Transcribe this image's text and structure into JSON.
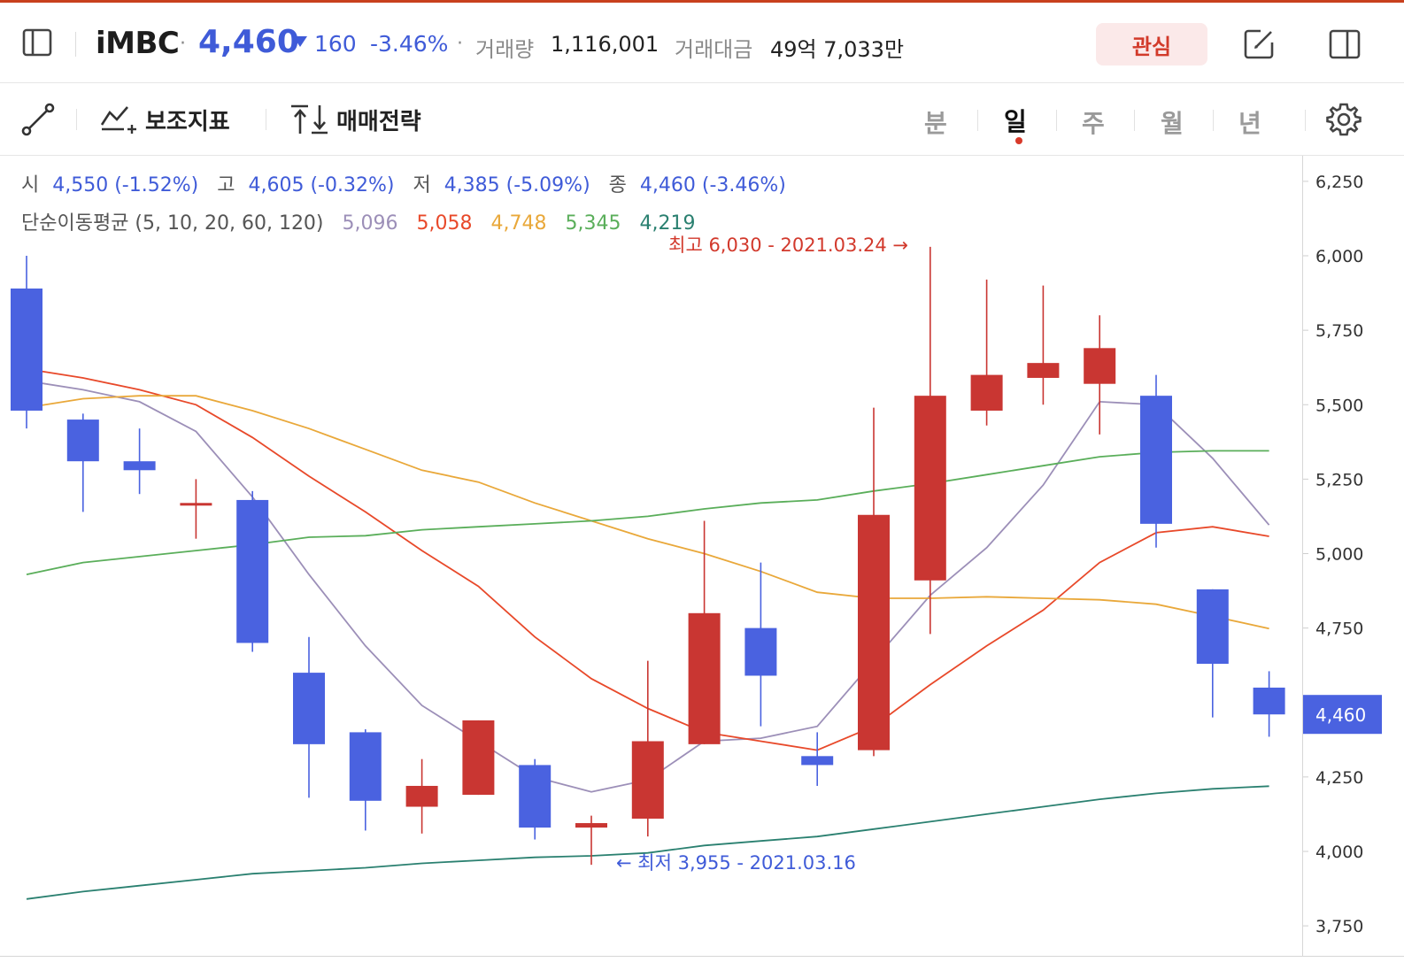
{
  "header": {
    "stock_name": "iMBC",
    "price": "4,460",
    "change": "160",
    "change_pct": "-3.46%",
    "volume_label": "거래량",
    "volume": "1,116,001",
    "amount_label": "거래대금",
    "amount": "49억 7,033만",
    "favorite_label": "관심",
    "price_color": "#3f5bd8"
  },
  "toolbar": {
    "indicator_label": "보조지표",
    "strategy_label": "매매전략",
    "periods": [
      "분",
      "일",
      "주",
      "월",
      "년"
    ],
    "active_period": "일"
  },
  "ohlc": {
    "open_label": "시",
    "open": "4,550 (-1.52%)",
    "high_label": "고",
    "high": "4,605 (-0.32%)",
    "low_label": "저",
    "low": "4,385 (-5.09%)",
    "close_label": "종",
    "close": "4,460 (-3.46%)"
  },
  "ma_legend": {
    "label": "단순이동평균 (5, 10, 20, 60, 120)",
    "values": [
      {
        "value": "5,096",
        "color": "#9c8fb8"
      },
      {
        "value": "5,058",
        "color": "#e8492a"
      },
      {
        "value": "4,748",
        "color": "#e9a83a"
      },
      {
        "value": "5,345",
        "color": "#5aae5a"
      },
      {
        "value": "4,219",
        "color": "#2a8070"
      }
    ]
  },
  "chart_data": {
    "type": "candlestick",
    "ylim": [
      3700,
      6330
    ],
    "yticks": [
      "6,250",
      "6,000",
      "5,750",
      "5,500",
      "5,250",
      "5,000",
      "4,750",
      "4,250",
      "4,000",
      "3,750"
    ],
    "ytick_values": [
      6250,
      6000,
      5750,
      5500,
      5250,
      5000,
      4750,
      4250,
      4000,
      3750
    ],
    "current_price_label": "4,460",
    "current_price": 4460,
    "up_color": "#c93632",
    "down_color": "#4a62e0",
    "candles": [
      {
        "o": 5890,
        "h": 6000,
        "l": 5420,
        "c": 5480
      },
      {
        "o": 5450,
        "h": 5470,
        "l": 5140,
        "c": 5310
      },
      {
        "o": 5310,
        "h": 5420,
        "l": 5200,
        "c": 5280
      },
      {
        "o": 5170,
        "h": 5250,
        "l": 5050,
        "c": 5170
      },
      {
        "o": 5180,
        "h": 5210,
        "l": 4670,
        "c": 4700
      },
      {
        "o": 4600,
        "h": 4720,
        "l": 4180,
        "c": 4360
      },
      {
        "o": 4400,
        "h": 4410,
        "l": 4070,
        "c": 4170
      },
      {
        "o": 4150,
        "h": 4310,
        "l": 4060,
        "c": 4220
      },
      {
        "o": 4190,
        "h": 4440,
        "l": 4190,
        "c": 4440
      },
      {
        "o": 4290,
        "h": 4310,
        "l": 4040,
        "c": 4080
      },
      {
        "o": 4080,
        "h": 4120,
        "l": 3955,
        "c": 4095
      },
      {
        "o": 4110,
        "h": 4640,
        "l": 4050,
        "c": 4370
      },
      {
        "o": 4360,
        "h": 5110,
        "l": 4360,
        "c": 4800
      },
      {
        "o": 4750,
        "h": 4970,
        "l": 4420,
        "c": 4590
      },
      {
        "o": 4320,
        "h": 4400,
        "l": 4220,
        "c": 4290
      },
      {
        "o": 4340,
        "h": 5490,
        "l": 4320,
        "c": 5130
      },
      {
        "o": 4910,
        "h": 6030,
        "l": 4730,
        "c": 5530
      },
      {
        "o": 5480,
        "h": 5920,
        "l": 5430,
        "c": 5600
      },
      {
        "o": 5590,
        "h": 5900,
        "l": 5500,
        "c": 5640
      },
      {
        "o": 5570,
        "h": 5800,
        "l": 5400,
        "c": 5690
      },
      {
        "o": 5530,
        "h": 5600,
        "l": 5020,
        "c": 5100
      },
      {
        "o": 4880,
        "h": 4880,
        "l": 4450,
        "c": 4630
      },
      {
        "o": 4550,
        "h": 4605,
        "l": 4385,
        "c": 4460
      }
    ],
    "series": [
      {
        "name": "5",
        "color": "#9c8fb8",
        "values": [
          5580,
          5550,
          5510,
          5410,
          5190,
          4930,
          4690,
          4490,
          4370,
          4250,
          4200,
          4240,
          4370,
          4380,
          4420,
          4640,
          4860,
          5020,
          5230,
          5510,
          5500,
          5320,
          5096
        ]
      },
      {
        "name": "10",
        "color": "#e8492a",
        "values": [
          5620,
          5590,
          5550,
          5500,
          5390,
          5260,
          5140,
          5010,
          4890,
          4720,
          4580,
          4480,
          4400,
          4370,
          4340,
          4420,
          4560,
          4690,
          4810,
          4970,
          5070,
          5090,
          5058
        ]
      },
      {
        "name": "20",
        "color": "#e9a83a",
        "values": [
          5490,
          5520,
          5530,
          5530,
          5480,
          5420,
          5350,
          5280,
          5240,
          5170,
          5110,
          5050,
          5000,
          4940,
          4870,
          4850,
          4850,
          4855,
          4850,
          4845,
          4830,
          4790,
          4748
        ]
      },
      {
        "name": "60",
        "color": "#5aae5a",
        "values": [
          4930,
          4970,
          4990,
          5010,
          5030,
          5055,
          5060,
          5080,
          5090,
          5100,
          5110,
          5125,
          5150,
          5170,
          5180,
          5210,
          5235,
          5265,
          5295,
          5325,
          5340,
          5345,
          5345
        ]
      },
      {
        "name": "120",
        "color": "#2a8070",
        "values": [
          3840,
          3865,
          3885,
          3905,
          3925,
          3935,
          3945,
          3960,
          3970,
          3980,
          3985,
          3995,
          4020,
          4035,
          4050,
          4075,
          4100,
          4125,
          4150,
          4175,
          4195,
          4210,
          4219
        ]
      }
    ],
    "high_annotation": "최고 6,030 - 2021.03.24 →",
    "low_annotation": "← 최저 3,955 - 2021.03.16"
  }
}
